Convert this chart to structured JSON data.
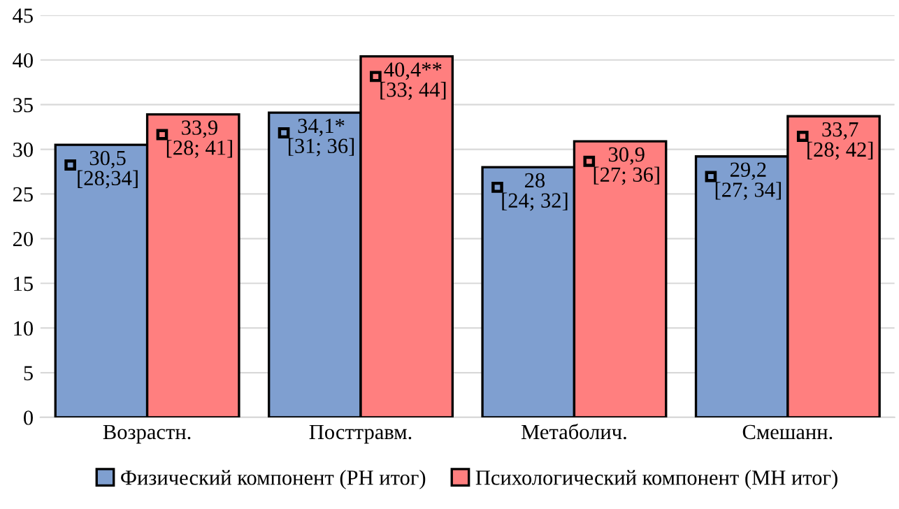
{
  "chart_data": {
    "type": "bar",
    "categories": [
      "Возрастн.",
      "Посттравм.",
      "Метаболич.",
      "Смешанн."
    ],
    "series": [
      {
        "name": "Физический компонент (PH итог)",
        "color": "#7f9fd0",
        "values": [
          30.5,
          34.1,
          28,
          29.2
        ],
        "value_labels": [
          "30,5\n[28;34]",
          "34,1*\n[31; 36]",
          "28\n[24; 32]",
          "29,2\n[27; 34]"
        ]
      },
      {
        "name": "Психологический компонент (МН итог)",
        "color": "#ff7f7f",
        "values": [
          33.9,
          40.4,
          30.9,
          33.7
        ],
        "value_labels": [
          "33,9\n[28; 41]",
          "40,4**\n[33; 44]",
          "30,9\n[27; 36]",
          "33,7\n[28; 42]"
        ]
      }
    ],
    "ylim": [
      0,
      45
    ],
    "yticks": [
      0,
      5,
      10,
      15,
      20,
      25,
      30,
      35,
      40,
      45
    ],
    "grid": "y",
    "legend": "bottom"
  }
}
